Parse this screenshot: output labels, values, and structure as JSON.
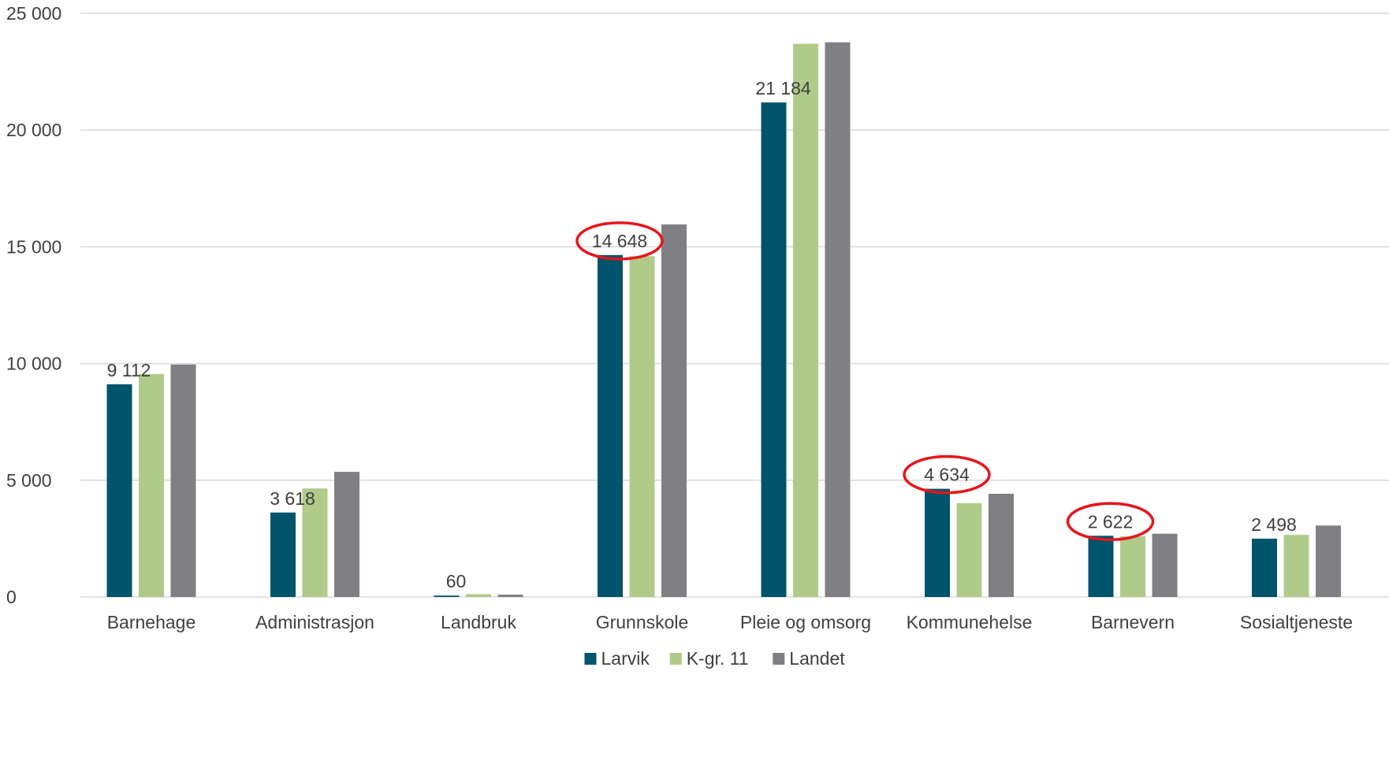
{
  "chart_data": {
    "type": "bar",
    "categories": [
      "Barnehage",
      "Administrasjon",
      "Landbruk",
      "Grunnskole",
      "Pleie og omsorg",
      "Kommunehelse",
      "Barnevern",
      "Sosialtjeneste"
    ],
    "series": [
      {
        "name": "Larvik",
        "color": "#00546b",
        "values": [
          9112,
          3618,
          60,
          14648,
          21184,
          4634,
          2622,
          2498
        ]
      },
      {
        "name": "K-gr. 11",
        "color": "#b0ca8a",
        "values": [
          9550,
          4650,
          120,
          14600,
          23700,
          4020,
          2600,
          2660
        ]
      },
      {
        "name": "Landet",
        "color": "#808084",
        "values": [
          9960,
          5360,
          100,
          15960,
          23760,
          4420,
          2710,
          3060
        ]
      }
    ],
    "data_labels": {
      "series": "Larvik",
      "values": [
        "9 112",
        "3 618",
        "60",
        "14 648",
        "21 184",
        "4 634",
        "2 622",
        "2 498"
      ]
    },
    "highlighted_labels": [
      "Grunnskole",
      "Kommunehelse",
      "Barnevern"
    ],
    "highlight_color": "#e8141b",
    "ylim": [
      0,
      25000
    ],
    "yticks": [
      0,
      5000,
      10000,
      15000,
      20000,
      25000
    ],
    "ytick_labels": [
      "0",
      "5 000",
      "10 000",
      "15 000",
      "20 000",
      "25 000"
    ],
    "grid": true,
    "legend_position": "bottom-center",
    "title": "",
    "xlabel": "",
    "ylabel": ""
  }
}
